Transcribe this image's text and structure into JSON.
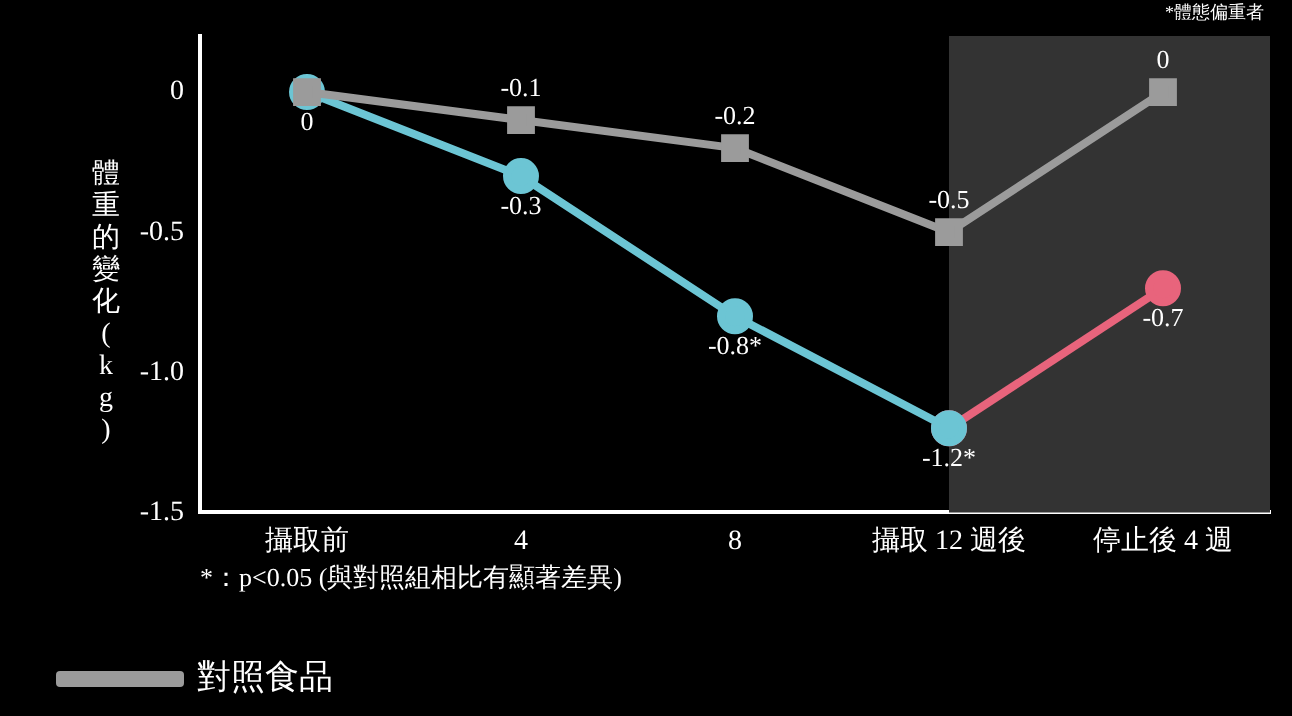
{
  "chart_data": {
    "type": "line",
    "ylabel": "體重的變化 (kg)",
    "categories": [
      "攝取前",
      "4",
      "8",
      "攝取 12 週後",
      "停止後 4 週"
    ],
    "series": [
      {
        "name": "對照食品",
        "color": "#9b9b9b",
        "values": [
          0,
          -0.1,
          -0.2,
          -0.5,
          0
        ],
        "marker": "square",
        "value_labels": [
          "0",
          "-0.1",
          "-0.2",
          "-0.5",
          "0"
        ]
      },
      {
        "color": "#6cc5d4",
        "values": [
          0,
          -0.3,
          -0.8,
          -1.2,
          null
        ],
        "marker": "circle",
        "value_labels": [
          null,
          "-0.3",
          "-0.8*",
          "-1.2*",
          null
        ]
      },
      {
        "color": "#e8647c",
        "values": [
          null,
          null,
          null,
          -1.2,
          -0.7
        ],
        "marker": "circle",
        "value_labels": [
          null,
          null,
          null,
          null,
          "-0.7"
        ]
      }
    ],
    "ylim": [
      -1.5,
      0.2
    ],
    "yticks": [
      0,
      {
        "value": -0.5,
        "label": "-0.5"
      },
      {
        "value": -1,
        "label": "-1.0"
      },
      {
        "value": -1.5,
        "label": "-1.5"
      }
    ],
    "bands": [
      {
        "axis": "x",
        "from": "攝取 12 週後",
        "to": "停止後 4 週",
        "color": "#333333"
      }
    ],
    "legend": "bottom",
    "annotations": [
      "*體態偏重者",
      "*：p<0.05 (與對照組相比有顯著差異)"
    ]
  }
}
